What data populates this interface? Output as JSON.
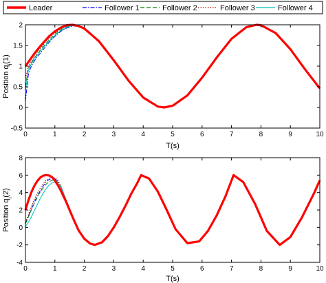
{
  "legend": {
    "entries": [
      {
        "name": "Leader",
        "color": "#ff0000",
        "dash": "solid"
      },
      {
        "name": "Follower 1",
        "color": "#0000ff",
        "dash": "dashdot"
      },
      {
        "name": "Follower 2",
        "color": "#008000",
        "dash": "dashed"
      },
      {
        "name": "Follower 3",
        "color": "#c00000",
        "dash": "dotted"
      },
      {
        "name": "Follower 4",
        "color": "#00bfbf",
        "dash": "solid"
      }
    ]
  },
  "chart_data": [
    {
      "type": "line",
      "xlabel": "T(s)",
      "ylabel": "Position q_i(1)",
      "xlim": [
        0,
        10
      ],
      "ylim": [
        -0.5,
        2
      ],
      "xticks": [
        0,
        1,
        2,
        3,
        4,
        5,
        6,
        7,
        8,
        9,
        10
      ],
      "yticks": [
        -0.5,
        0,
        0.5,
        1,
        1.5,
        2
      ],
      "grid": false,
      "legend_position": "top (above plots)",
      "x": [
        0,
        0.1,
        0.2,
        0.3,
        0.4,
        0.5,
        0.6,
        0.8,
        1.0,
        1.2,
        1.4,
        1.6,
        1.8,
        2.0,
        2.5,
        3.0,
        3.5,
        4.0,
        4.5,
        4.71,
        5.0,
        5.5,
        6.0,
        6.5,
        7.0,
        7.5,
        7.85,
        8.0,
        8.5,
        9.0,
        9.5,
        10.0
      ],
      "series": [
        {
          "name": "Leader",
          "values": [
            1.0,
            1.1,
            1.2,
            1.3,
            1.39,
            1.48,
            1.56,
            1.72,
            1.84,
            1.93,
            1.99,
            2.0,
            1.97,
            1.91,
            1.6,
            1.14,
            0.65,
            0.24,
            0.02,
            0.0,
            0.04,
            0.29,
            0.72,
            1.21,
            1.66,
            1.94,
            2.0,
            1.99,
            1.8,
            1.41,
            0.92,
            0.46
          ]
        },
        {
          "name": "Follower 1",
          "values": [
            0.15,
            0.8,
            1.0,
            1.12,
            1.22,
            1.31,
            1.4,
            1.57,
            1.72,
            1.84,
            1.92,
            1.97,
            1.97,
            1.91,
            1.6,
            1.14,
            0.65,
            0.24,
            0.02,
            0.0,
            0.04,
            0.29,
            0.72,
            1.21,
            1.66,
            1.94,
            2.0,
            1.99,
            1.8,
            1.41,
            0.92,
            0.46
          ]
        },
        {
          "name": "Follower 2",
          "values": [
            0.5,
            0.95,
            1.08,
            1.19,
            1.29,
            1.38,
            1.47,
            1.63,
            1.77,
            1.88,
            1.95,
            1.99,
            1.97,
            1.91,
            1.6,
            1.14,
            0.65,
            0.24,
            0.02,
            0.0,
            0.04,
            0.29,
            0.72,
            1.21,
            1.66,
            1.94,
            2.0,
            1.99,
            1.8,
            1.41,
            0.92,
            0.46
          ]
        },
        {
          "name": "Follower 3",
          "values": [
            0.7,
            1.0,
            1.12,
            1.23,
            1.33,
            1.42,
            1.51,
            1.67,
            1.8,
            1.9,
            1.97,
            2.0,
            1.97,
            1.91,
            1.6,
            1.14,
            0.65,
            0.24,
            0.02,
            0.0,
            0.04,
            0.29,
            0.72,
            1.21,
            1.66,
            1.94,
            2.0,
            1.99,
            1.8,
            1.41,
            0.92,
            0.46
          ]
        },
        {
          "name": "Follower 4",
          "values": [
            0.4,
            0.9,
            1.05,
            1.16,
            1.26,
            1.35,
            1.44,
            1.6,
            1.74,
            1.86,
            1.94,
            1.98,
            1.97,
            1.91,
            1.6,
            1.14,
            0.65,
            0.24,
            0.02,
            0.0,
            0.04,
            0.29,
            0.72,
            1.21,
            1.66,
            1.94,
            2.0,
            1.99,
            1.8,
            1.41,
            0.92,
            0.46
          ]
        }
      ]
    },
    {
      "type": "line",
      "xlabel": "T(s)",
      "ylabel": "Position q_i(2)",
      "xlim": [
        0,
        10
      ],
      "ylim": [
        -4,
        8
      ],
      "xticks": [
        0,
        1,
        2,
        3,
        4,
        5,
        6,
        7,
        8,
        9,
        10
      ],
      "yticks": [
        -4,
        -2,
        0,
        2,
        4,
        6,
        8
      ],
      "grid": false,
      "x": [
        0,
        0.1,
        0.2,
        0.3,
        0.4,
        0.5,
        0.6,
        0.7,
        0.8,
        0.9,
        1.0,
        1.1,
        1.2,
        1.4,
        1.6,
        1.8,
        2.0,
        2.2,
        2.36,
        2.6,
        2.8,
        3.0,
        3.2,
        3.4,
        3.6,
        3.8,
        3.93,
        4.2,
        4.5,
        4.8,
        5.1,
        5.5,
        5.9,
        6.2,
        6.5,
        6.8,
        7.07,
        7.4,
        7.8,
        8.2,
        8.64,
        9.0,
        9.4,
        9.8,
        10.0
      ],
      "series": [
        {
          "name": "Leader",
          "values": [
            2.0,
            3.1,
            4.04,
            4.76,
            5.31,
            5.71,
            5.93,
            6.0,
            5.96,
            5.78,
            5.38,
            4.85,
            4.25,
            2.8,
            1.2,
            -0.3,
            -1.3,
            -1.85,
            -2.0,
            -1.7,
            -1.0,
            0.0,
            1.2,
            2.5,
            3.9,
            5.1,
            6.0,
            5.6,
            4.1,
            2.0,
            -0.2,
            -1.8,
            -1.6,
            -0.4,
            1.4,
            3.6,
            6.0,
            5.2,
            2.7,
            -0.4,
            -2.0,
            -1.1,
            1.2,
            3.9,
            5.4
          ]
        },
        {
          "name": "Follower 1",
          "values": [
            0.5,
            1.3,
            2.1,
            2.9,
            3.6,
            4.2,
            4.75,
            5.2,
            5.5,
            5.62,
            5.58,
            5.3,
            4.7,
            3.0,
            1.25,
            -0.3,
            -1.3,
            -1.85,
            -2.0,
            -1.7,
            -1.0,
            0.0,
            1.2,
            2.5,
            3.9,
            5.1,
            6.0,
            5.6,
            4.1,
            2.0,
            -0.2,
            -1.8,
            -1.6,
            -0.4,
            1.4,
            3.6,
            6.0,
            5.2,
            2.7,
            -0.4,
            -2.0,
            -1.1,
            1.2,
            3.9,
            5.4
          ]
        },
        {
          "name": "Follower 2",
          "values": [
            0.4,
            1.2,
            2.0,
            2.75,
            3.45,
            4.05,
            4.55,
            4.95,
            5.25,
            5.4,
            5.4,
            5.2,
            4.7,
            3.0,
            1.25,
            -0.3,
            -1.3,
            -1.85,
            -2.0,
            -1.7,
            -1.0,
            0.0,
            1.2,
            2.5,
            3.9,
            5.1,
            6.0,
            5.6,
            4.1,
            2.0,
            -0.2,
            -1.8,
            -1.6,
            -0.4,
            1.4,
            3.6,
            6.0,
            5.2,
            2.7,
            -0.4,
            -2.0,
            -1.1,
            1.2,
            3.9,
            5.4
          ]
        },
        {
          "name": "Follower 3",
          "values": [
            0.6,
            1.5,
            2.4,
            3.2,
            3.9,
            4.5,
            5.0,
            5.4,
            5.65,
            5.75,
            5.7,
            5.4,
            4.8,
            3.05,
            1.25,
            -0.3,
            -1.3,
            -1.85,
            -2.0,
            -1.7,
            -1.0,
            0.0,
            1.2,
            2.5,
            3.9,
            5.1,
            6.0,
            5.6,
            4.1,
            2.0,
            -0.2,
            -1.8,
            -1.6,
            -0.4,
            1.4,
            3.6,
            6.0,
            5.2,
            2.7,
            -0.4,
            -2.0,
            -1.1,
            1.2,
            3.9,
            5.4
          ]
        },
        {
          "name": "Follower 4",
          "values": [
            0.1,
            0.6,
            1.2,
            1.9,
            2.6,
            3.3,
            3.9,
            4.45,
            4.85,
            5.1,
            5.2,
            5.05,
            4.65,
            3.0,
            1.25,
            -0.3,
            -1.3,
            -1.85,
            -2.0,
            -1.7,
            -1.0,
            0.0,
            1.2,
            2.5,
            3.9,
            5.1,
            6.0,
            5.6,
            4.1,
            2.0,
            -0.2,
            -1.8,
            -1.6,
            -0.4,
            1.4,
            3.6,
            6.0,
            5.2,
            2.7,
            -0.4,
            -2.0,
            -1.1,
            1.2,
            3.9,
            5.4
          ]
        }
      ]
    }
  ]
}
